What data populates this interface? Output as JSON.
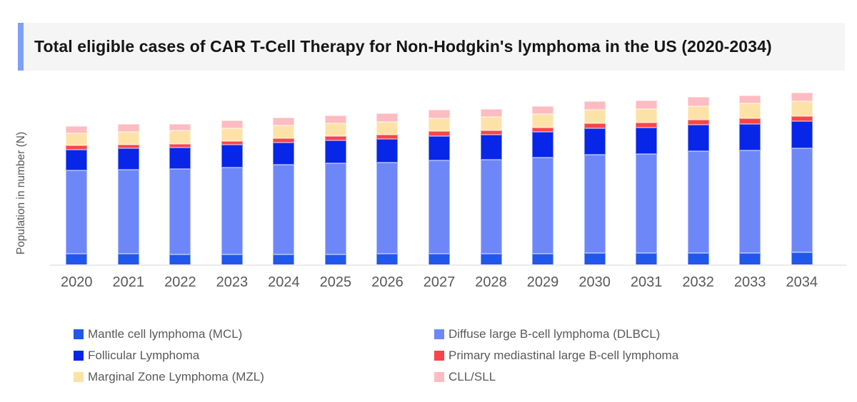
{
  "title": {
    "text": "Total eligible cases of CAR T-Cell Therapy for Non-Hodgkin's lymphoma in the US (2020-2034)"
  },
  "colors": {
    "title_accent": "#7d9ff6",
    "title_bg": "#f5f5f6",
    "title_text": "#161616",
    "axis_line": "#ebebeb",
    "axis_text": "#595959"
  },
  "chart_data": {
    "type": "bar",
    "stacked": true,
    "title": "Total eligible cases of CAR T-Cell Therapy for Non-Hodgkin's lymphoma in the US (2020-2034)",
    "xlabel": "",
    "ylabel": "Population in number (N)",
    "grid": false,
    "legend_position": "bottom",
    "value_note": "y-axis has no numeric tick labels; values are relative heights estimated from pixels",
    "ylim": [
      0,
      260
    ],
    "categories": [
      "2020",
      "2021",
      "2022",
      "2023",
      "2024",
      "2025",
      "2026",
      "2027",
      "2028",
      "2029",
      "2030",
      "2031",
      "2032",
      "2033",
      "2034"
    ],
    "series": [
      {
        "name": "Mantle cell lymphoma (MCL)",
        "color": "#2157ea",
        "values": [
          16,
          16,
          15,
          15,
          15,
          15,
          16,
          16,
          16,
          16,
          17,
          17,
          17,
          17,
          18
        ]
      },
      {
        "name": "Diffuse large B-cell lymphoma (DLBCL)",
        "color": "#6e87f8",
        "values": [
          117,
          118,
          120,
          122,
          126,
          128,
          128,
          131,
          132,
          135,
          138,
          139,
          143,
          144,
          146
        ]
      },
      {
        "name": "Follicular Lymphoma",
        "color": "#0726e8",
        "values": [
          29,
          30,
          30,
          32,
          31,
          32,
          33,
          34,
          35,
          36,
          37,
          37,
          37,
          37,
          38
        ]
      },
      {
        "name": "Primary mediastinal large B-cell lymphoma",
        "color": "#f8454a",
        "values": [
          6,
          5,
          5,
          5,
          6,
          6,
          6,
          7,
          6,
          6,
          7,
          7,
          7,
          8,
          7
        ]
      },
      {
        "name": "Marginal Zone Lymphoma (MZL)",
        "color": "#fde2a8",
        "values": [
          17,
          18,
          19,
          18,
          18,
          18,
          18,
          18,
          19,
          19,
          19,
          19,
          19,
          21,
          21
        ]
      },
      {
        "name": "CLL/SLL",
        "color": "#fdbcc1",
        "values": [
          10,
          11,
          9,
          11,
          11,
          11,
          12,
          12,
          11,
          11,
          12,
          12,
          13,
          11,
          12
        ]
      }
    ]
  },
  "legend": {
    "left_indices": [
      0,
      2,
      4
    ],
    "right_indices": [
      1,
      3,
      5
    ]
  }
}
